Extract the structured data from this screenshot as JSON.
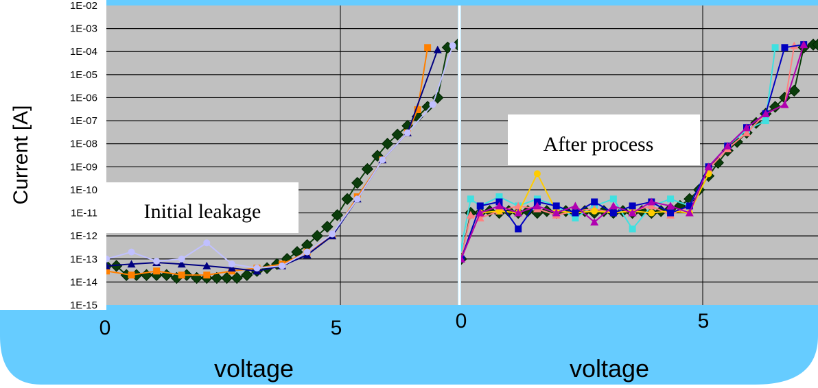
{
  "chart_data": [
    {
      "type": "scatter",
      "yscale": "log",
      "ylabel": "Current [A]",
      "xlabel": "voltage",
      "xlim": [
        0,
        7
      ],
      "ylim": [
        1e-15,
        0.01
      ],
      "x_ticks": [
        "0",
        "5"
      ],
      "y_ticks": [
        "1E-02",
        "1E-03",
        "1E-04",
        "1E-05",
        "1E-06",
        "1E-07",
        "1E-08",
        "1E-09",
        "1E-10",
        "1E-11",
        "1E-12",
        "1E-13",
        "1E-14",
        "1E-15"
      ],
      "annotation": "Initial leakage",
      "series": [
        {
          "color": "#0b3d0b",
          "x": [
            0.0,
            0.2,
            0.4,
            0.6,
            0.8,
            1.0,
            1.2,
            1.4,
            1.6,
            1.8,
            2.0,
            2.2,
            2.4,
            2.6,
            2.8,
            3.0,
            3.2,
            3.4,
            3.6,
            3.8,
            4.0,
            4.2,
            4.4,
            4.6,
            4.8,
            5.0,
            5.2,
            5.4,
            5.6,
            5.8,
            6.0,
            6.2,
            6.4,
            6.6,
            6.8,
            7.0
          ],
          "y": [
            5e-14,
            5e-14,
            2e-14,
            2e-14,
            2e-14,
            2e-14,
            2e-14,
            1.5e-14,
            2e-14,
            1.5e-14,
            1.5e-14,
            1.5e-14,
            1.5e-14,
            1.5e-14,
            2e-14,
            3e-14,
            4e-14,
            6e-14,
            1e-13,
            2e-13,
            4e-13,
            1e-12,
            2.5e-12,
            8e-12,
            4e-11,
            2e-10,
            8e-10,
            3e-09,
            1e-08,
            2.5e-08,
            6e-08,
            1.5e-07,
            4e-07,
            1e-06,
            0.00015,
            0.0002
          ]
        },
        {
          "color": "#ff8000",
          "x": [
            0.0,
            0.5,
            1.0,
            1.5,
            2.0,
            2.5,
            3.0,
            3.5,
            4.0,
            4.5,
            5.0,
            5.5,
            6.0,
            6.2,
            6.4
          ],
          "y": [
            3e-14,
            2e-14,
            3e-14,
            2e-14,
            2e-14,
            3e-14,
            4e-14,
            6e-14,
            2e-13,
            1e-12,
            5e-11,
            2e-09,
            3e-08,
            3e-07,
            0.00015
          ]
        },
        {
          "color": "#000080",
          "x": [
            0.0,
            0.5,
            1.0,
            1.5,
            2.0,
            2.5,
            3.0,
            3.5,
            4.0,
            4.5,
            5.0,
            5.5,
            6.0,
            6.6
          ],
          "y": [
            5e-14,
            6e-14,
            7e-14,
            6e-14,
            5e-14,
            4e-14,
            3e-14,
            5e-14,
            1.5e-13,
            1e-12,
            4e-11,
            2e-09,
            3e-08,
            0.00012
          ]
        },
        {
          "color": "#c0c0ff",
          "x": [
            0.0,
            0.5,
            1.0,
            1.5,
            2.0,
            2.5,
            3.0,
            3.5,
            4.0,
            4.5,
            5.0,
            5.5,
            6.0,
            6.5,
            6.9
          ],
          "y": [
            1e-13,
            2e-13,
            8e-14,
            1e-13,
            5e-13,
            6e-14,
            4e-14,
            5e-14,
            2e-13,
            1.2e-12,
            4e-11,
            2e-09,
            3e-08,
            5e-07,
            0.00018
          ]
        }
      ]
    },
    {
      "type": "scatter",
      "yscale": "log",
      "xlabel": "voltage",
      "xlim": [
        0,
        7.5
      ],
      "ylim": [
        1e-15,
        0.01
      ],
      "x_ticks": [
        "0",
        "5"
      ],
      "annotation": "After process",
      "series": [
        {
          "color": "#0b3d0b",
          "x": [
            0.0,
            0.2,
            0.4,
            0.6,
            0.8,
            1.0,
            1.2,
            1.4,
            1.6,
            1.8,
            2.0,
            2.2,
            2.4,
            2.6,
            2.8,
            3.0,
            3.2,
            3.4,
            3.6,
            3.8,
            4.0,
            4.2,
            4.4,
            4.6,
            4.8,
            5.0,
            5.2,
            5.4,
            5.6,
            5.8,
            6.0,
            6.2,
            6.4,
            6.6,
            6.8,
            7.0,
            7.2,
            7.4,
            7.5
          ],
          "y": [
            1e-13,
            1e-11,
            1e-11,
            1.2e-11,
            1e-11,
            1.2e-11,
            1e-11,
            1.2e-11,
            1e-11,
            1.2e-11,
            1e-11,
            1.2e-11,
            1e-11,
            1.2e-11,
            1e-11,
            1.2e-11,
            1e-11,
            1.2e-11,
            1e-11,
            1.2e-11,
            1e-11,
            1.2e-11,
            1.5e-11,
            2e-11,
            4e-11,
            1e-10,
            4e-10,
            1.5e-09,
            5e-09,
            1.2e-08,
            3e-08,
            8e-08,
            2e-07,
            4e-07,
            1e-06,
            2e-06,
            0.00015,
            0.0002,
            0.0002
          ]
        },
        {
          "color": "#40e0e0",
          "x": [
            0.0,
            0.2,
            0.4,
            0.8,
            1.2,
            1.6,
            2.0,
            2.4,
            2.8,
            3.2,
            3.6,
            4.0,
            4.4,
            4.8,
            5.2,
            5.6,
            6.0,
            6.4,
            6.6
          ],
          "y": [
            3e-13,
            4e-11,
            2e-11,
            5e-11,
            2e-11,
            4e-11,
            2e-11,
            6e-12,
            2e-11,
            4e-11,
            2e-12,
            2e-11,
            4e-11,
            2e-11,
            1e-09,
            8e-09,
            4e-08,
            1e-07,
            0.00015
          ]
        },
        {
          "color": "#ff8080",
          "x": [
            0.0,
            0.2,
            0.4,
            0.8,
            1.2,
            1.6,
            2.0,
            2.4,
            2.8,
            3.2,
            3.6,
            4.0,
            4.4,
            4.8,
            5.2,
            5.6,
            6.0,
            6.4,
            6.8,
            7.0
          ],
          "y": [
            1e-13,
            8e-12,
            6e-12,
            1.2e-11,
            2e-11,
            1.5e-11,
            8e-12,
            1.2e-11,
            1.5e-11,
            1e-11,
            1.2e-11,
            2e-11,
            8e-12,
            2e-11,
            8e-10,
            6e-09,
            3e-08,
            2e-07,
            5e-07,
            0.00018
          ]
        },
        {
          "color": "#ffcc00",
          "x": [
            0.0,
            0.4,
            0.8,
            1.2,
            1.6,
            2.0,
            2.4,
            2.8,
            3.2,
            3.6,
            4.0,
            4.4,
            4.8,
            5.2
          ],
          "y": [
            1e-13,
            1e-11,
            1.2e-11,
            1e-11,
            5e-10,
            1.2e-11,
            1e-11,
            1.2e-11,
            1e-11,
            1.2e-11,
            1e-11,
            1.2e-11,
            1e-11,
            5e-10
          ]
        },
        {
          "color": "#0000c0",
          "x": [
            0.0,
            0.4,
            0.8,
            1.2,
            1.6,
            2.0,
            2.4,
            2.8,
            3.2,
            3.6,
            4.0,
            4.4,
            4.8,
            5.2,
            5.6,
            6.0,
            6.4,
            6.8,
            7.2
          ],
          "y": [
            1e-13,
            2e-11,
            3e-11,
            2e-12,
            3e-11,
            2e-11,
            1e-11,
            3e-11,
            1e-11,
            2e-11,
            3e-11,
            1e-11,
            2e-11,
            1e-09,
            8e-09,
            5e-08,
            2e-07,
            0.00015,
            0.0002
          ]
        },
        {
          "color": "#b000b0",
          "x": [
            0.0,
            0.4,
            0.8,
            1.2,
            1.6,
            2.0,
            2.4,
            2.8,
            3.2,
            3.6,
            4.0,
            4.4,
            4.8,
            5.2,
            5.6,
            6.0,
            6.4,
            6.8,
            7.2
          ],
          "y": [
            1e-13,
            1e-11,
            2e-11,
            1e-11,
            2e-11,
            1e-11,
            2e-11,
            4e-12,
            2e-11,
            1e-11,
            3e-11,
            2e-11,
            1e-11,
            1e-09,
            8e-09,
            5e-08,
            2e-07,
            5e-07,
            0.0002
          ]
        }
      ]
    }
  ]
}
